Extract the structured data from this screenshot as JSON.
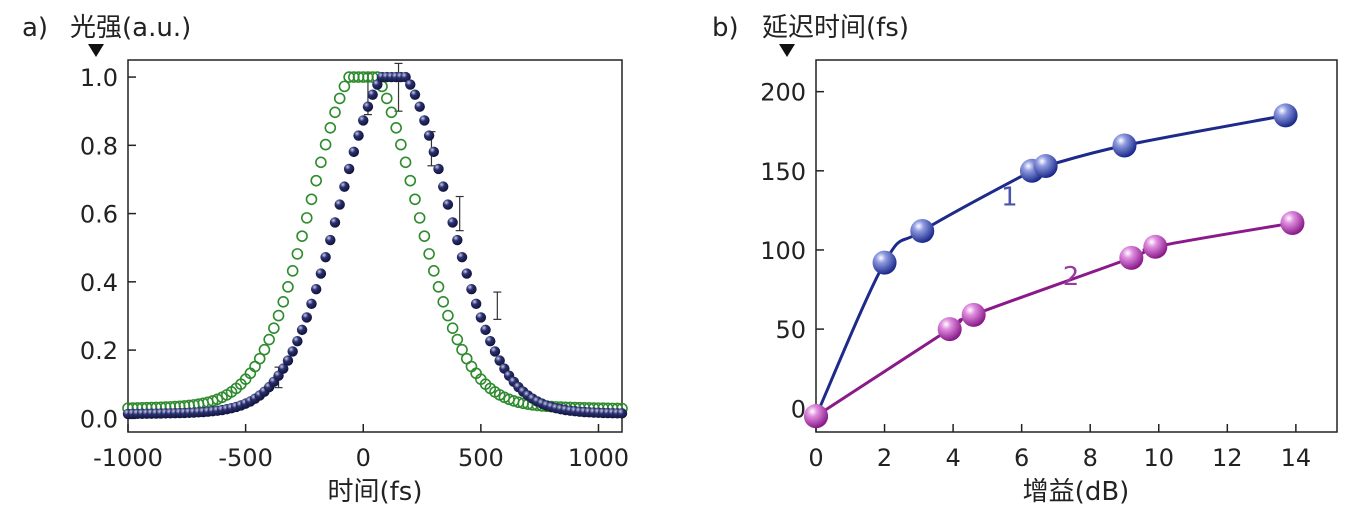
{
  "chart_data": [
    {
      "panel_label": "a)",
      "type": "scatter",
      "ylabel": "光强(a.u.)",
      "xlabel": "时间(fs)",
      "xlim": [
        -1000,
        1100
      ],
      "ylim": [
        -0.04,
        1.05
      ],
      "xticks": [
        -1000,
        -500,
        0,
        500,
        1000
      ],
      "xtick_labels": [
        "-1000",
        "-500",
        "0",
        "500",
        "1000"
      ],
      "yticks": [
        0.0,
        0.2,
        0.4,
        0.6,
        0.8,
        1.0
      ],
      "ytick_labels": [
        "0.0",
        "0.2",
        "0.4",
        "0.6",
        "0.8",
        "1.0"
      ],
      "grid": false,
      "series": [
        {
          "style": "open-circle",
          "color": "#2e8b2e",
          "gauss": {
            "center": 0,
            "sigma": 220,
            "amp": 0.96,
            "base": 0.025,
            "tail": 0.06
          },
          "x_range": [
            -1000,
            1100
          ],
          "step": 20
        },
        {
          "style": "filled-sphere",
          "color": "#1b2057",
          "gauss": {
            "center": 130,
            "sigma": 230,
            "amp": 0.97,
            "base": 0.01,
            "tail": 0.05
          },
          "x_range": [
            -1000,
            1100
          ],
          "step": 20,
          "error_bars": [
            {
              "x": 20,
              "y": 0.95,
              "err": 0.06
            },
            {
              "x": 150,
              "y": 0.97,
              "err": 0.07
            },
            {
              "x": 290,
              "y": 0.79,
              "err": 0.05
            },
            {
              "x": 410,
              "y": 0.6,
              "err": 0.05
            },
            {
              "x": 570,
              "y": 0.33,
              "err": 0.04
            },
            {
              "x": -360,
              "y": 0.12,
              "err": 0.03
            }
          ]
        }
      ]
    },
    {
      "panel_label": "b)",
      "type": "line",
      "ylabel": "延迟时间(fs)",
      "xlabel": "增益(dB)",
      "xlim": [
        0,
        15.2
      ],
      "ylim": [
        -15,
        220
      ],
      "xticks": [
        0,
        2,
        4,
        6,
        8,
        10,
        12,
        14
      ],
      "xtick_labels": [
        "0",
        "2",
        "4",
        "6",
        "8",
        "10",
        "12",
        "14"
      ],
      "yticks": [
        0,
        50,
        100,
        150,
        200
      ],
      "ytick_labels": [
        "0",
        "50",
        "100",
        "150",
        "200"
      ],
      "grid": false,
      "series": [
        {
          "name": "1",
          "color": "#1e2a8a",
          "x": [
            0,
            2.0,
            3.1,
            6.3,
            6.7,
            9.0,
            13.7
          ],
          "y": [
            -5,
            92,
            112,
            150,
            153,
            166,
            185
          ]
        },
        {
          "name": "2",
          "color": "#8a1a8a",
          "x": [
            0,
            3.9,
            4.6,
            9.2,
            9.9,
            13.9
          ],
          "y": [
            -5,
            50,
            59,
            95,
            102,
            117
          ]
        }
      ]
    }
  ]
}
